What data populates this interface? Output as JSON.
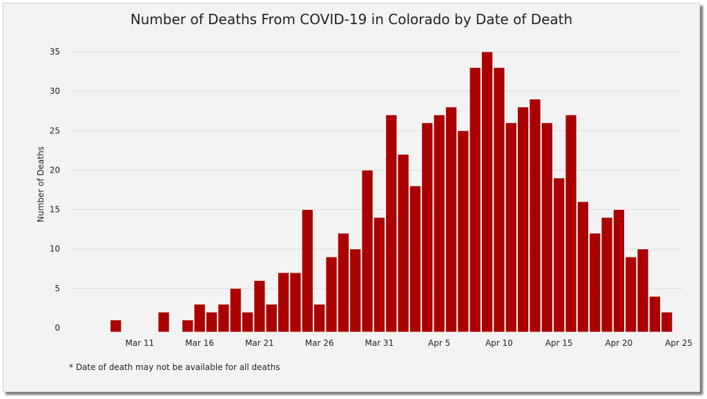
{
  "chart_data": {
    "type": "bar",
    "title": "Number of Deaths From COVID-19 in Colorado by Date of Death",
    "xlabel": "",
    "ylabel": "Number of Deaths",
    "footnote": "* Date of death may not be available for all deaths",
    "ylim": [
      0,
      35
    ],
    "yticks": [
      0,
      5,
      10,
      15,
      20,
      25,
      30,
      35
    ],
    "grid": true,
    "bar_color": "#aa0000",
    "x_start": "2020-03-07",
    "xtick_labels": [
      {
        "label": "Mar 11",
        "date": "2020-03-11"
      },
      {
        "label": "Mar 16",
        "date": "2020-03-16"
      },
      {
        "label": "Mar 21",
        "date": "2020-03-21"
      },
      {
        "label": "Mar 26",
        "date": "2020-03-26"
      },
      {
        "label": "Mar 31",
        "date": "2020-03-31"
      },
      {
        "label": "Apr 5",
        "date": "2020-04-05"
      },
      {
        "label": "Apr 10",
        "date": "2020-04-10"
      },
      {
        "label": "Apr 15",
        "date": "2020-04-15"
      },
      {
        "label": "Apr 20",
        "date": "2020-04-20"
      },
      {
        "label": "Apr 25",
        "date": "2020-04-25"
      }
    ],
    "dates": [
      "2020-03-09",
      "2020-03-13",
      "2020-03-15",
      "2020-03-16",
      "2020-03-17",
      "2020-03-18",
      "2020-03-19",
      "2020-03-20",
      "2020-03-21",
      "2020-03-22",
      "2020-03-23",
      "2020-03-24",
      "2020-03-25",
      "2020-03-26",
      "2020-03-27",
      "2020-03-28",
      "2020-03-29",
      "2020-03-30",
      "2020-03-31",
      "2020-04-01",
      "2020-04-02",
      "2020-04-03",
      "2020-04-04",
      "2020-04-05",
      "2020-04-06",
      "2020-04-07",
      "2020-04-08",
      "2020-04-09",
      "2020-04-10",
      "2020-04-11",
      "2020-04-12",
      "2020-04-13",
      "2020-04-14",
      "2020-04-15",
      "2020-04-16",
      "2020-04-17",
      "2020-04-18",
      "2020-04-19",
      "2020-04-20",
      "2020-04-21",
      "2020-04-22",
      "2020-04-23",
      "2020-04-24"
    ],
    "values": [
      1,
      2,
      1,
      3,
      2,
      3,
      5,
      2,
      6,
      3,
      7,
      7,
      15,
      3,
      9,
      12,
      10,
      20,
      14,
      27,
      22,
      18,
      26,
      27,
      28,
      25,
      33,
      35,
      33,
      26,
      28,
      29,
      26,
      19,
      27,
      16,
      12,
      14,
      15,
      9,
      10,
      4,
      2
    ]
  }
}
